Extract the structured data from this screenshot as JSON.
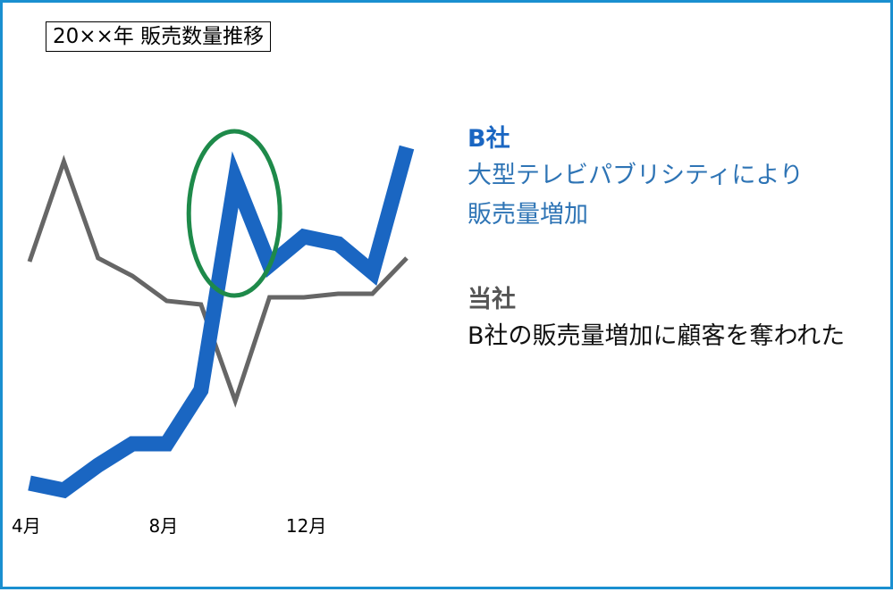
{
  "title": "20××年 販売数量推移",
  "chart_data": {
    "type": "line",
    "title": "20××年 販売数量推移",
    "x": [
      4,
      5,
      6,
      7,
      8,
      9,
      10,
      11,
      12,
      1,
      2,
      3
    ],
    "x_tick_labels": [
      "4月",
      "8月",
      "12月"
    ],
    "x_tick_values": [
      4,
      8,
      12
    ],
    "ylim": [
      0,
      100
    ],
    "grid": false,
    "legend": "none",
    "series": [
      {
        "name": "B社",
        "color": "#1a66c2",
        "values": [
          3,
          1,
          8,
          14,
          14,
          29,
          88,
          64,
          72,
          70,
          62,
          97
        ]
      },
      {
        "name": "当社",
        "color": "#666666",
        "values": [
          65,
          93,
          66,
          61,
          54,
          53,
          26,
          55,
          55,
          56,
          56,
          66
        ]
      }
    ],
    "highlight": {
      "series": "B社",
      "x": 10,
      "shape": "ellipse",
      "color": "#1e8a4a"
    }
  },
  "annotations": {
    "b": {
      "heading": "B社",
      "lines": [
        "大型テレビパブリシティにより",
        "販売量増加"
      ],
      "color": "#1a66c2"
    },
    "ours": {
      "heading": "当社",
      "lines": [
        "B社の販売量増加に顧客を奪われた"
      ],
      "color": "#555555"
    }
  }
}
